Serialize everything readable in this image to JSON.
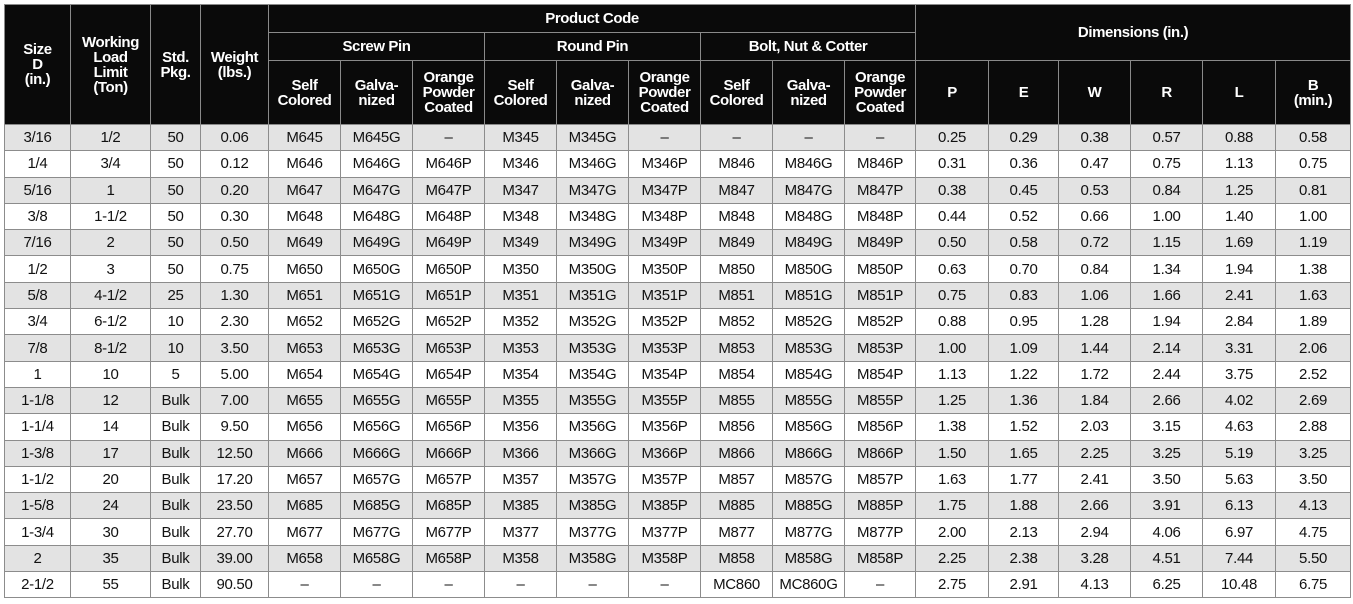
{
  "header": {
    "size": [
      "Size",
      "D",
      "(in.)"
    ],
    "working_load_limit": [
      "Working",
      "Load",
      "Limit",
      "(Ton)"
    ],
    "std_pkg": [
      "Std.",
      "Pkg."
    ],
    "weight": [
      "Weight",
      "(lbs.)"
    ],
    "product_code": "Product Code",
    "groups": [
      {
        "name": "Screw Pin",
        "columns": [
          [
            "Self",
            "Colored"
          ],
          [
            "Galva-",
            "nized"
          ],
          [
            "Orange",
            "Powder",
            "Coated"
          ]
        ]
      },
      {
        "name": "Round Pin",
        "columns": [
          [
            "Self",
            "Colored"
          ],
          [
            "Galva-",
            "nized"
          ],
          [
            "Orange",
            "Powder",
            "Coated"
          ]
        ]
      },
      {
        "name": "Bolt, Nut & Cotter",
        "columns": [
          [
            "Self",
            "Colored"
          ],
          [
            "Galva-",
            "nized"
          ],
          [
            "Orange",
            "Powder",
            "Coated"
          ]
        ]
      }
    ],
    "dimensions": "Dimensions (in.)",
    "dimension_columns": [
      [
        "P"
      ],
      [
        "E"
      ],
      [
        "W"
      ],
      [
        "R"
      ],
      [
        "L"
      ],
      [
        "B",
        "(min.)"
      ]
    ]
  },
  "table": {
    "rows": [
      [
        "3/16",
        "1/2",
        "50",
        "0.06",
        "M645",
        "M645G",
        "–",
        "M345",
        "M345G",
        "–",
        "–",
        "–",
        "–",
        "0.25",
        "0.29",
        "0.38",
        "0.57",
        "0.88",
        "0.58"
      ],
      [
        "1/4",
        "3/4",
        "50",
        "0.12",
        "M646",
        "M646G",
        "M646P",
        "M346",
        "M346G",
        "M346P",
        "M846",
        "M846G",
        "M846P",
        "0.31",
        "0.36",
        "0.47",
        "0.75",
        "1.13",
        "0.75"
      ],
      [
        "5/16",
        "1",
        "50",
        "0.20",
        "M647",
        "M647G",
        "M647P",
        "M347",
        "M347G",
        "M347P",
        "M847",
        "M847G",
        "M847P",
        "0.38",
        "0.45",
        "0.53",
        "0.84",
        "1.25",
        "0.81"
      ],
      [
        "3/8",
        "1-1/2",
        "50",
        "0.30",
        "M648",
        "M648G",
        "M648P",
        "M348",
        "M348G",
        "M348P",
        "M848",
        "M848G",
        "M848P",
        "0.44",
        "0.52",
        "0.66",
        "1.00",
        "1.40",
        "1.00"
      ],
      [
        "7/16",
        "2",
        "50",
        "0.50",
        "M649",
        "M649G",
        "M649P",
        "M349",
        "M349G",
        "M349P",
        "M849",
        "M849G",
        "M849P",
        "0.50",
        "0.58",
        "0.72",
        "1.15",
        "1.69",
        "1.19"
      ],
      [
        "1/2",
        "3",
        "50",
        "0.75",
        "M650",
        "M650G",
        "M650P",
        "M350",
        "M350G",
        "M350P",
        "M850",
        "M850G",
        "M850P",
        "0.63",
        "0.70",
        "0.84",
        "1.34",
        "1.94",
        "1.38"
      ],
      [
        "5/8",
        "4-1/2",
        "25",
        "1.30",
        "M651",
        "M651G",
        "M651P",
        "M351",
        "M351G",
        "M351P",
        "M851",
        "M851G",
        "M851P",
        "0.75",
        "0.83",
        "1.06",
        "1.66",
        "2.41",
        "1.63"
      ],
      [
        "3/4",
        "6-1/2",
        "10",
        "2.30",
        "M652",
        "M652G",
        "M652P",
        "M352",
        "M352G",
        "M352P",
        "M852",
        "M852G",
        "M852P",
        "0.88",
        "0.95",
        "1.28",
        "1.94",
        "2.84",
        "1.89"
      ],
      [
        "7/8",
        "8-1/2",
        "10",
        "3.50",
        "M653",
        "M653G",
        "M653P",
        "M353",
        "M353G",
        "M353P",
        "M853",
        "M853G",
        "M853P",
        "1.00",
        "1.09",
        "1.44",
        "2.14",
        "3.31",
        "2.06"
      ],
      [
        "1",
        "10",
        "5",
        "5.00",
        "M654",
        "M654G",
        "M654P",
        "M354",
        "M354G",
        "M354P",
        "M854",
        "M854G",
        "M854P",
        "1.13",
        "1.22",
        "1.72",
        "2.44",
        "3.75",
        "2.52"
      ],
      [
        "1-1/8",
        "12",
        "Bulk",
        "7.00",
        "M655",
        "M655G",
        "M655P",
        "M355",
        "M355G",
        "M355P",
        "M855",
        "M855G",
        "M855P",
        "1.25",
        "1.36",
        "1.84",
        "2.66",
        "4.02",
        "2.69"
      ],
      [
        "1-1/4",
        "14",
        "Bulk",
        "9.50",
        "M656",
        "M656G",
        "M656P",
        "M356",
        "M356G",
        "M356P",
        "M856",
        "M856G",
        "M856P",
        "1.38",
        "1.52",
        "2.03",
        "3.15",
        "4.63",
        "2.88"
      ],
      [
        "1-3/8",
        "17",
        "Bulk",
        "12.50",
        "M666",
        "M666G",
        "M666P",
        "M366",
        "M366G",
        "M366P",
        "M866",
        "M866G",
        "M866P",
        "1.50",
        "1.65",
        "2.25",
        "3.25",
        "5.19",
        "3.25"
      ],
      [
        "1-1/2",
        "20",
        "Bulk",
        "17.20",
        "M657",
        "M657G",
        "M657P",
        "M357",
        "M357G",
        "M357P",
        "M857",
        "M857G",
        "M857P",
        "1.63",
        "1.77",
        "2.41",
        "3.50",
        "5.63",
        "3.50"
      ],
      [
        "1-5/8",
        "24",
        "Bulk",
        "23.50",
        "M685",
        "M685G",
        "M685P",
        "M385",
        "M385G",
        "M385P",
        "M885",
        "M885G",
        "M885P",
        "1.75",
        "1.88",
        "2.66",
        "3.91",
        "6.13",
        "4.13"
      ],
      [
        "1-3/4",
        "30",
        "Bulk",
        "27.70",
        "M677",
        "M677G",
        "M677P",
        "M377",
        "M377G",
        "M377P",
        "M877",
        "M877G",
        "M877P",
        "2.00",
        "2.13",
        "2.94",
        "4.06",
        "6.97",
        "4.75"
      ],
      [
        "2",
        "35",
        "Bulk",
        "39.00",
        "M658",
        "M658G",
        "M658P",
        "M358",
        "M358G",
        "M358P",
        "M858",
        "M858G",
        "M858P",
        "2.25",
        "2.38",
        "3.28",
        "4.51",
        "7.44",
        "5.50"
      ],
      [
        "2-1/2",
        "55",
        "Bulk",
        "90.50",
        "–",
        "–",
        "–",
        "–",
        "–",
        "–",
        "MC860",
        "MC860G",
        "–",
        "2.75",
        "2.91",
        "4.13",
        "6.25",
        "10.48",
        "6.75"
      ]
    ]
  }
}
